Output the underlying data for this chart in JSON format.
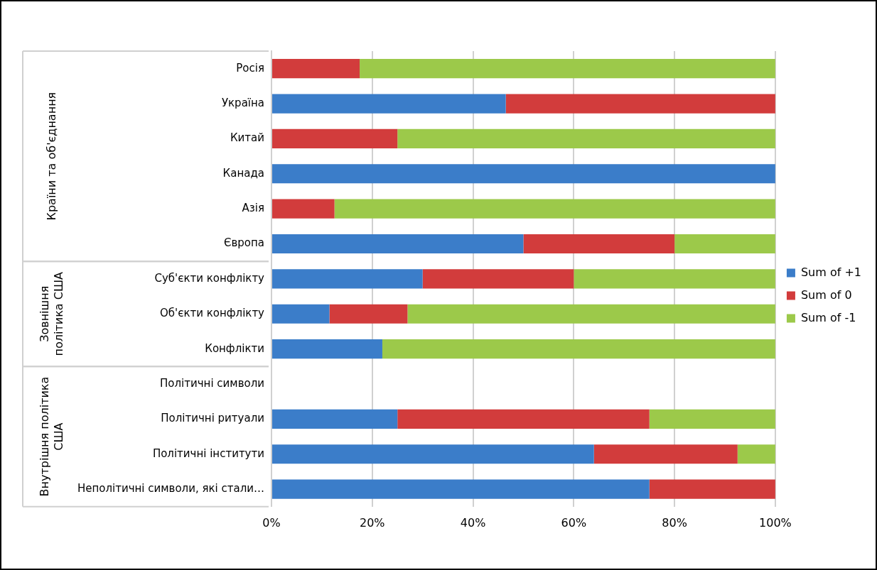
{
  "chart_data": {
    "type": "bar",
    "orientation": "horizontal",
    "stacked": true,
    "categories": [
      "Росія",
      "Україна",
      "Китай",
      "Канада",
      "Азія",
      "Європа",
      "Суб'єкти конфлікту",
      "Об'єкти конфлікту",
      "Конфлікти",
      "Політичні символи",
      "Політичні ритуали",
      "Політичні інститути",
      "Неполітичні символи, які стали…"
    ],
    "series": [
      {
        "name": "Sum of +1",
        "color": "#3b7dc9",
        "values": [
          0,
          46.5,
          0,
          100,
          0,
          50,
          30,
          11.5,
          22,
          0,
          25,
          64,
          75
        ]
      },
      {
        "name": "Sum of 0",
        "color": "#d23c3c",
        "values": [
          17.5,
          53.5,
          25,
          0,
          12.5,
          30,
          30,
          15.5,
          0,
          0,
          50,
          28.5,
          25
        ]
      },
      {
        "name": "Sum of -1",
        "color": "#9cc94a",
        "values": [
          82.5,
          0,
          75,
          0,
          87.5,
          20,
          40,
          73,
          78,
          0,
          25,
          7.5,
          0
        ]
      }
    ],
    "xlim": [
      0,
      100
    ],
    "xticks": [
      {
        "value": 0,
        "label": "0%"
      },
      {
        "value": 20,
        "label": "20%"
      },
      {
        "value": 40,
        "label": "40%"
      },
      {
        "value": 60,
        "label": "60%"
      },
      {
        "value": 80,
        "label": "80%"
      },
      {
        "value": 100,
        "label": "100%"
      }
    ],
    "annotations": [
      "Країни та об'єднання",
      "Зовнішня політика США",
      "Внутрішня політика США"
    ],
    "grid": "x",
    "legend": "right"
  }
}
